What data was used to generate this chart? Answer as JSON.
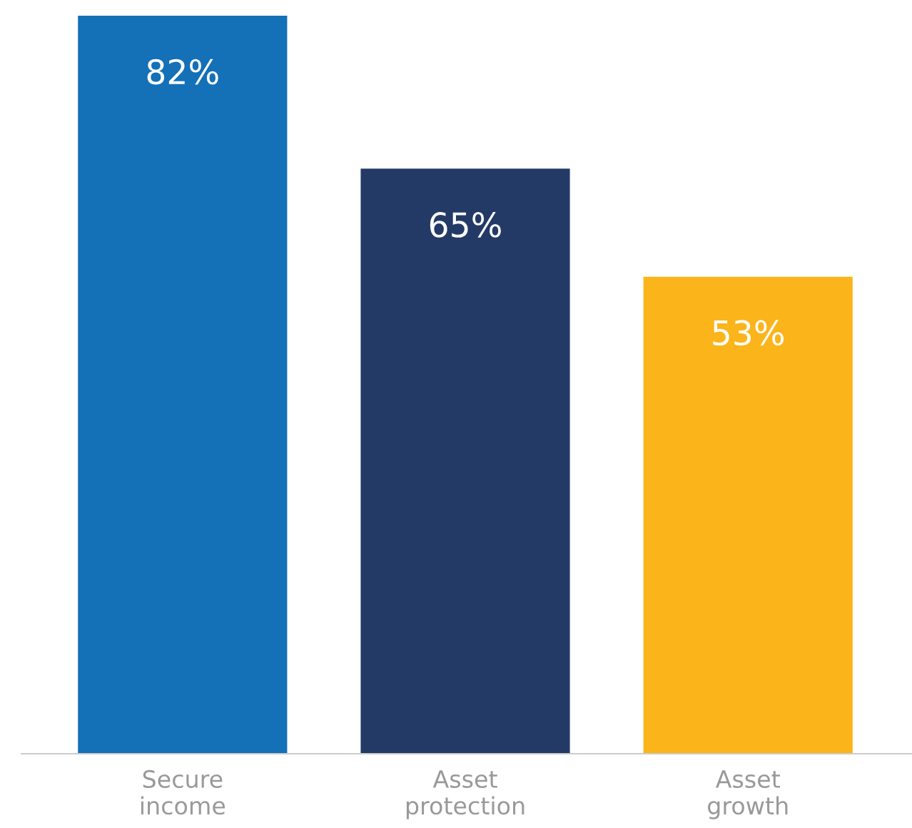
{
  "chart_data": {
    "type": "bar",
    "categories": [
      "Secure\nincome",
      "Asset\nprotection",
      "Asset\ngrowth"
    ],
    "values": [
      82,
      65,
      53
    ],
    "colors": [
      "#1470b7",
      "#243a66",
      "#fbb41a"
    ],
    "value_labels": [
      "82%",
      "65%",
      "53%"
    ],
    "grid": false,
    "legend": false
  }
}
